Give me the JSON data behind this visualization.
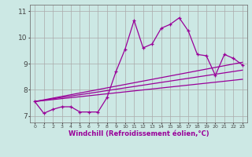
{
  "bg_color": "#cce8e4",
  "line_color": "#990099",
  "grid_color": "#aaaaaa",
  "xlabel": "Windchill (Refroidissement éolien,°C)",
  "ylabel_ticks": [
    7,
    8,
    9,
    10,
    11
  ],
  "xlim": [
    -0.5,
    23.5
  ],
  "ylim": [
    6.75,
    11.25
  ],
  "series1_x": [
    0,
    1,
    2,
    3,
    4,
    5,
    6,
    7,
    8,
    9,
    10,
    11,
    12,
    13,
    14,
    15,
    16,
    17,
    18,
    19,
    20,
    21,
    22,
    23
  ],
  "series1_y": [
    7.55,
    7.1,
    7.25,
    7.35,
    7.35,
    7.15,
    7.15,
    7.15,
    7.7,
    8.7,
    9.55,
    10.65,
    9.6,
    9.75,
    10.35,
    10.5,
    10.75,
    10.25,
    9.35,
    9.3,
    8.55,
    9.35,
    9.2,
    8.95
  ],
  "series2_x": [
    0,
    23
  ],
  "series2_y": [
    7.55,
    9.05
  ],
  "series3_x": [
    0,
    23
  ],
  "series3_y": [
    7.55,
    8.75
  ],
  "series4_x": [
    0,
    23
  ],
  "series4_y": [
    7.55,
    8.4
  ],
  "xtick_labels": [
    "0",
    "1",
    "2",
    "3",
    "4",
    "5",
    "6",
    "7",
    "8",
    "9",
    "10",
    "11",
    "12",
    "13",
    "14",
    "15",
    "16",
    "17",
    "18",
    "19",
    "20",
    "21",
    "22",
    "23"
  ]
}
